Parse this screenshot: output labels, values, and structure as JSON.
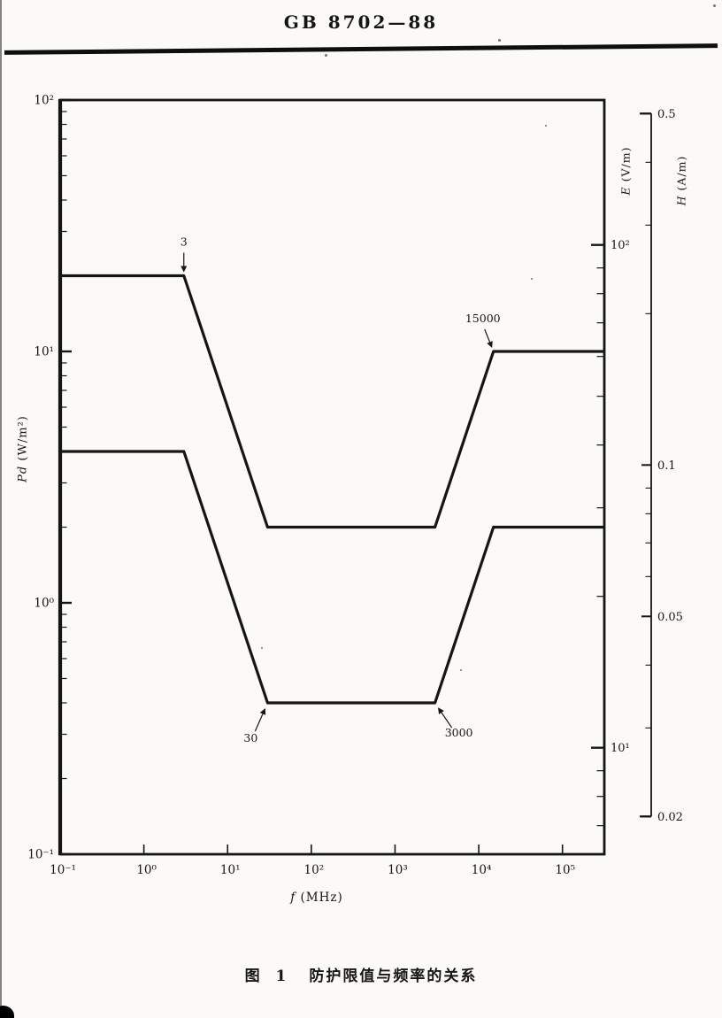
{
  "page": {
    "header_title": "GB 8702—88",
    "caption_figure": "图 1",
    "caption_text": "防护限值与频率的关系"
  },
  "chart_data": {
    "type": "line",
    "title": "防护限值与频率的关系",
    "xlabel": "f (MHz)",
    "ylabel": "Pd (W/m²)",
    "x_scale": "log",
    "y_scale": "log",
    "grid": false,
    "x_axis": {
      "symbol": "f",
      "unit": "(MHz)",
      "range_mhz": [
        0.1,
        316228
      ],
      "tick_values": [
        0.1,
        1,
        10,
        100,
        1000,
        10000,
        100000
      ],
      "tick_labels": [
        "10⁻¹",
        "10⁰",
        "10¹",
        "10²",
        "10³",
        "10⁴",
        "10⁵"
      ]
    },
    "pd_axis": {
      "symbol": "Pd",
      "unit": "(W/m²)",
      "range": [
        0.1,
        100
      ],
      "tick_values": [
        100,
        10,
        1,
        0.1
      ],
      "tick_labels": [
        "10²",
        "10¹",
        "10⁰",
        "10⁻¹"
      ]
    },
    "e_axis": {
      "symbol": "E",
      "unit": "(V/m)",
      "tick_values": [
        100,
        10
      ],
      "tick_labels": [
        "10²",
        "10¹"
      ]
    },
    "h_axis": {
      "symbol": "H",
      "unit": "(A/m)",
      "tick_values": [
        0.5,
        0.1,
        0.05,
        0.02
      ],
      "tick_labels": [
        "0.5",
        "0.1",
        "0.05",
        "0.02"
      ],
      "minor_tick_values": [
        0.4,
        0.3,
        0.2,
        0.09,
        0.08,
        0.07,
        0.06,
        0.04,
        0.03
      ]
    },
    "series": [
      {
        "name": "upper-limit-curve",
        "points_f_pd": [
          [
            0.1,
            20
          ],
          [
            3,
            20
          ],
          [
            30,
            2
          ],
          [
            3000,
            2
          ],
          [
            15000,
            10
          ],
          [
            316228,
            10
          ]
        ]
      },
      {
        "name": "lower-limit-curve",
        "points_f_pd": [
          [
            0.1,
            4
          ],
          [
            3,
            4
          ],
          [
            30,
            0.4
          ],
          [
            3000,
            0.4
          ],
          [
            15000,
            2
          ],
          [
            316228,
            2
          ]
        ]
      }
    ],
    "annotations": [
      {
        "label": "3",
        "f": 3,
        "pd": 20,
        "placement": "above"
      },
      {
        "label": "30",
        "f": 30,
        "pd": 0.4,
        "placement": "below-left"
      },
      {
        "label": "3000",
        "f": 3000,
        "pd": 0.4,
        "placement": "below-right"
      },
      {
        "label": "15000",
        "f": 15000,
        "pd": 10,
        "placement": "above-left"
      }
    ],
    "ink_color": "#151515",
    "paper_color": "#fbfaf6"
  }
}
